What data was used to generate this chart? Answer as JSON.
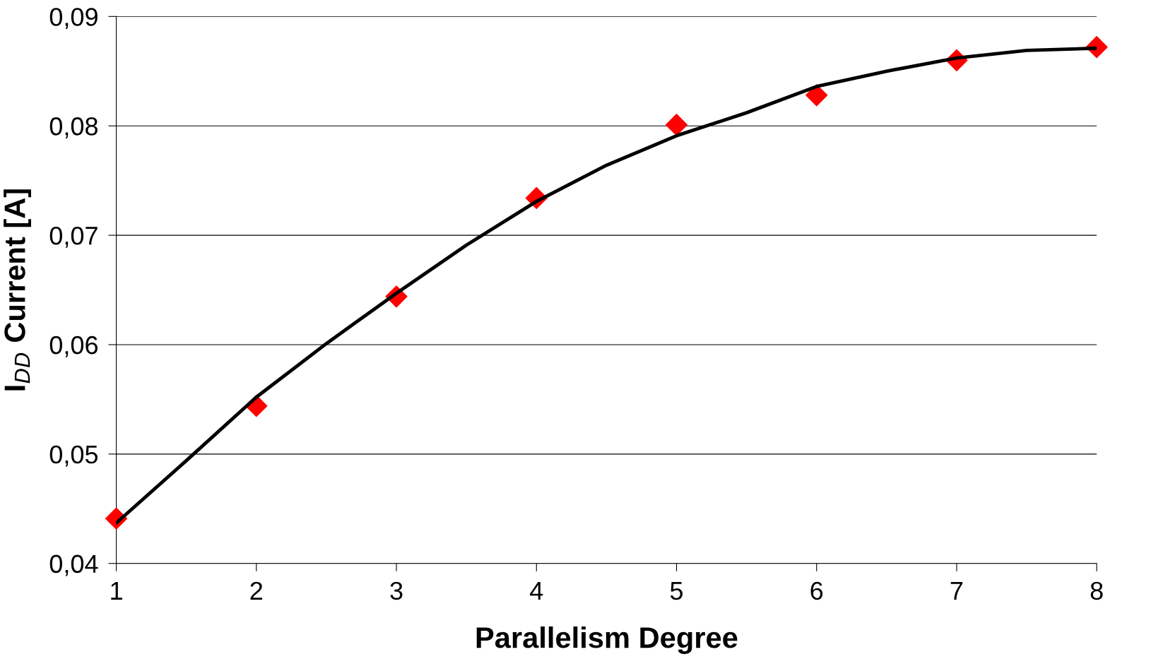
{
  "chart_data": {
    "type": "line",
    "xlabel": "Parallelism Degree",
    "ylabel": "I$_{DD}$ Current [A]",
    "xlim": [
      1,
      8
    ],
    "xticks": [
      1,
      2,
      3,
      4,
      5,
      6,
      7,
      8
    ],
    "ylim": [
      0.04,
      0.09
    ],
    "yticks": [
      {
        "value": 0.04,
        "label": "0,04"
      },
      {
        "value": 0.05,
        "label": "0,05"
      },
      {
        "value": 0.06,
        "label": "0,06"
      },
      {
        "value": 0.07,
        "label": "0,07"
      },
      {
        "value": 0.08,
        "label": "0,08"
      },
      {
        "value": 0.09,
        "label": "0,09"
      }
    ],
    "grid": "y",
    "series": [
      {
        "type": "scatter",
        "marker": "diamond",
        "color": "#ff0000",
        "x": [
          1,
          2,
          3,
          4,
          5,
          6,
          7,
          8
        ],
        "values": [
          0.0441,
          0.0544,
          0.0644,
          0.0734,
          0.0801,
          0.0828,
          0.086,
          0.0872
        ]
      },
      {
        "color": "#000000",
        "line_style": "solid",
        "x": [
          1,
          1.5,
          2,
          2.5,
          3,
          3.5,
          4,
          4.5,
          5,
          5.5,
          6,
          6.5,
          7,
          7.5,
          8
        ],
        "values": [
          0.0437,
          0.0494,
          0.0552,
          0.0601,
          0.0647,
          0.0691,
          0.0731,
          0.0764,
          0.0791,
          0.0812,
          0.0836,
          0.085,
          0.0862,
          0.0869,
          0.0871
        ]
      }
    ]
  }
}
